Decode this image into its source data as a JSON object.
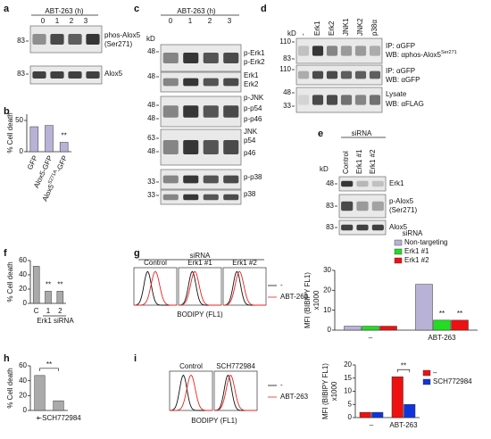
{
  "panel_labels": [
    "a",
    "b",
    "c",
    "d",
    "e",
    "f",
    "g",
    "h",
    "i"
  ],
  "a": {
    "title": "ABT-263 (h)",
    "lanes": [
      "0",
      "1",
      "2",
      "3"
    ],
    "markers": [
      83,
      83
    ],
    "bands": [
      "phos-Alox5",
      "(Ser271)",
      "Alox5"
    ]
  },
  "b": {
    "type": "bar",
    "ylabel": "% Cell death",
    "ylim": [
      0,
      60
    ],
    "yticks": [
      0,
      50
    ],
    "categories": [
      "GFP",
      "Alox5-GFP",
      [
        "Alox5",
        "S271A",
        "-GFP"
      ]
    ],
    "series": [
      {
        "color": "#b8b3d6",
        "values": [
          40,
          42,
          15
        ]
      }
    ],
    "annotations": [
      "**"
    ]
  },
  "c": {
    "title": "ABT-263 (h)",
    "kd": "kD",
    "lanes": [
      "0",
      "1",
      "2",
      "3"
    ],
    "markers": [
      48,
      48,
      48,
      48,
      63,
      48,
      33,
      33
    ],
    "bands": [
      "p-Erk1",
      "p-Erk2",
      "Erk1",
      "Erk2",
      "p-JNK",
      "p-p54",
      "p-p46",
      "JNK",
      "p54",
      "p46",
      "p-p38",
      "p38"
    ]
  },
  "d": {
    "kd": "kD",
    "lanes": [
      "-",
      "Erk1",
      "Erk2",
      "JNK1",
      "JNK2",
      "p38α"
    ],
    "markers": [
      110,
      83,
      110,
      48,
      33
    ],
    "labels": [
      [
        "IP: αGFP",
        "WB: αphos-Alox5",
        "Ser271"
      ],
      [
        "IP: αGFP",
        "WB: αGFP"
      ],
      [
        "Lysate",
        "WB: αFLAG"
      ]
    ]
  },
  "e": {
    "group": "siRNA",
    "kd": "kD",
    "lanes": [
      "Control",
      "Erk1 #1",
      "Erk1 #2"
    ],
    "markers": [
      48,
      83,
      83
    ],
    "bands": [
      "Erk1",
      "p-Alox5",
      "(Ser271)",
      "Alox5"
    ]
  },
  "f": {
    "type": "bar",
    "ylabel": "% Cell death",
    "ylim": [
      0,
      60
    ],
    "yticks": [
      0,
      20,
      40,
      60
    ],
    "categories": [
      "C",
      "1",
      "2"
    ],
    "group_label": "Erk1 siRNA",
    "series": [
      {
        "color": "#aaaaaa",
        "values": [
          52,
          17,
          17
        ]
      }
    ],
    "annotations": [
      "**",
      "**"
    ]
  },
  "g": {
    "group": "siRNA",
    "panels": [
      "Control",
      "Erk1 #1",
      "Erk1 #2"
    ],
    "legend": [
      "-",
      "ABT-263"
    ],
    "xlabel": "BODIPY (FL1)",
    "chart": {
      "type": "bar",
      "ylabel": [
        "MFI (BIBIPY FL1)",
        "x1000"
      ],
      "legend_title": "siRNA",
      "ylim": [
        0,
        30
      ],
      "yticks": [
        0,
        10,
        20,
        30
      ],
      "categories": [
        "–",
        "ABT-263"
      ],
      "series": [
        {
          "name": "Non-targeting",
          "color": "#b8b3d6",
          "values": [
            2,
            23
          ]
        },
        {
          "name": "Erk1 #1",
          "color": "#22dd22",
          "values": [
            2,
            5
          ]
        },
        {
          "name": "Erk1 #2",
          "color": "#ee1111",
          "values": [
            2,
            5
          ]
        }
      ],
      "annotations": [
        "**",
        "**"
      ]
    }
  },
  "h": {
    "type": "bar",
    "ylabel": "% Cell death",
    "ylim": [
      0,
      60
    ],
    "yticks": [
      0,
      20,
      40,
      60
    ],
    "categories": [
      "–",
      "+ SCH772984"
    ],
    "series": [
      {
        "color": "#aaaaaa",
        "values": [
          47,
          13
        ]
      }
    ],
    "annotations": [
      "**"
    ]
  },
  "i": {
    "panels": [
      "Control",
      "SCH772984"
    ],
    "legend": [
      "-",
      "ABT-263"
    ],
    "xlabel": "BODIPY (FL1)",
    "chart": {
      "type": "bar",
      "ylabel": [
        "MFI (BIBIPY FL1)",
        "x1000"
      ],
      "ylim": [
        0,
        20
      ],
      "yticks": [
        0,
        5,
        10,
        15,
        20
      ],
      "categories": [
        "–",
        "ABT-263"
      ],
      "series": [
        {
          "name": "–",
          "color": "#ee1111",
          "values": [
            2,
            15.5
          ]
        },
        {
          "name": "SCH772984",
          "color": "#1133dd",
          "values": [
            2,
            5
          ]
        }
      ],
      "annotations": [
        "**"
      ]
    }
  }
}
